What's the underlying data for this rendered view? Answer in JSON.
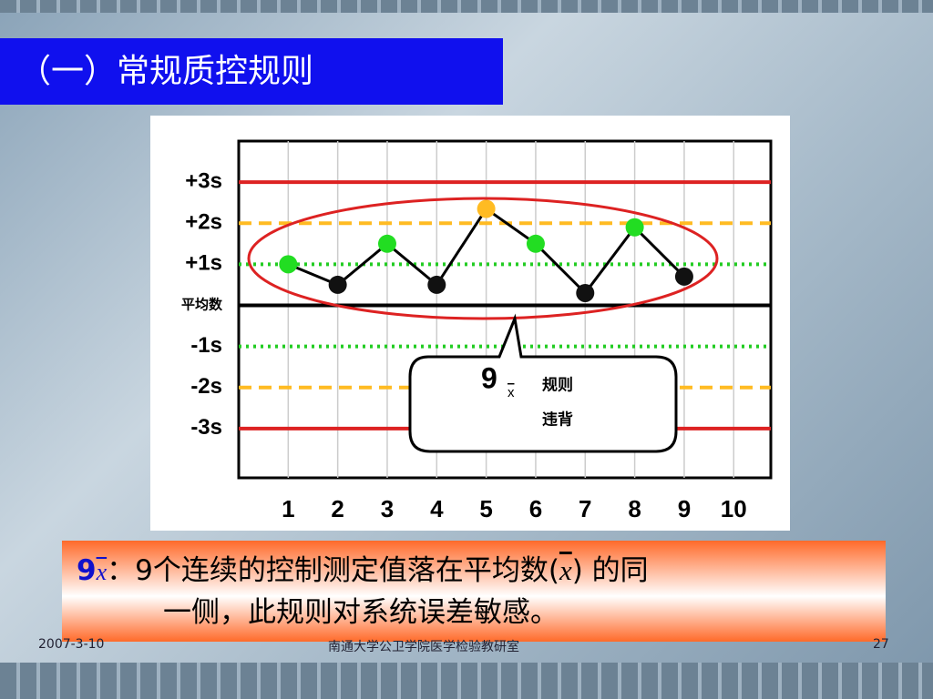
{
  "slide_title": "（一）常规质控规则",
  "chart_data": {
    "type": "line",
    "x": [
      1,
      2,
      3,
      4,
      5,
      6,
      7,
      8,
      9
    ],
    "values": [
      1.0,
      0.5,
      1.5,
      0.5,
      2.35,
      1.5,
      0.3,
      1.9,
      0.7
    ],
    "point_colors": [
      "#22dd22",
      "#111111",
      "#22dd22",
      "#111111",
      "#ffbb22",
      "#22dd22",
      "#111111",
      "#22dd22",
      "#111111"
    ],
    "line_color": "#000000",
    "xlim": [
      0,
      10.75
    ],
    "xticks": [
      1,
      2,
      3,
      4,
      5,
      6,
      7,
      8,
      9,
      10
    ],
    "ylim": [
      -4.2,
      4
    ],
    "yticks": [
      {
        "value": 3,
        "label": "+3s"
      },
      {
        "value": 2,
        "label": "+2s"
      },
      {
        "value": 1,
        "label": "+1s"
      },
      {
        "value": 0,
        "label": "平均数"
      },
      {
        "value": -1,
        "label": "-1s"
      },
      {
        "value": -2,
        "label": "-2s"
      },
      {
        "value": -3,
        "label": "-3s"
      }
    ],
    "ytick_line_colors": [
      "#dd2222",
      "#ffbb22",
      "#22cc22",
      "#000000",
      "#22cc22",
      "#ffbb22",
      "#dd2222"
    ],
    "ytick_line_styles": [
      "solid",
      "dashed",
      "dotted",
      "solid",
      "dotted",
      "dashed",
      "solid"
    ],
    "callout": {
      "number": "9",
      "symbol": "x",
      "line1": "规则",
      "line2": "违背"
    }
  },
  "rule_box": {
    "number": "9",
    "symbol": "x",
    "text1": "：9个连续的控制测定值落在平均数(",
    "symbol2": "x",
    "text2": ") 的同",
    "line2": "一侧，此规则对系统误差敏感。"
  },
  "footer": {
    "date": "2007-3-10",
    "org": "南通大学公卫学院医学检验教研室",
    "page": "27"
  }
}
